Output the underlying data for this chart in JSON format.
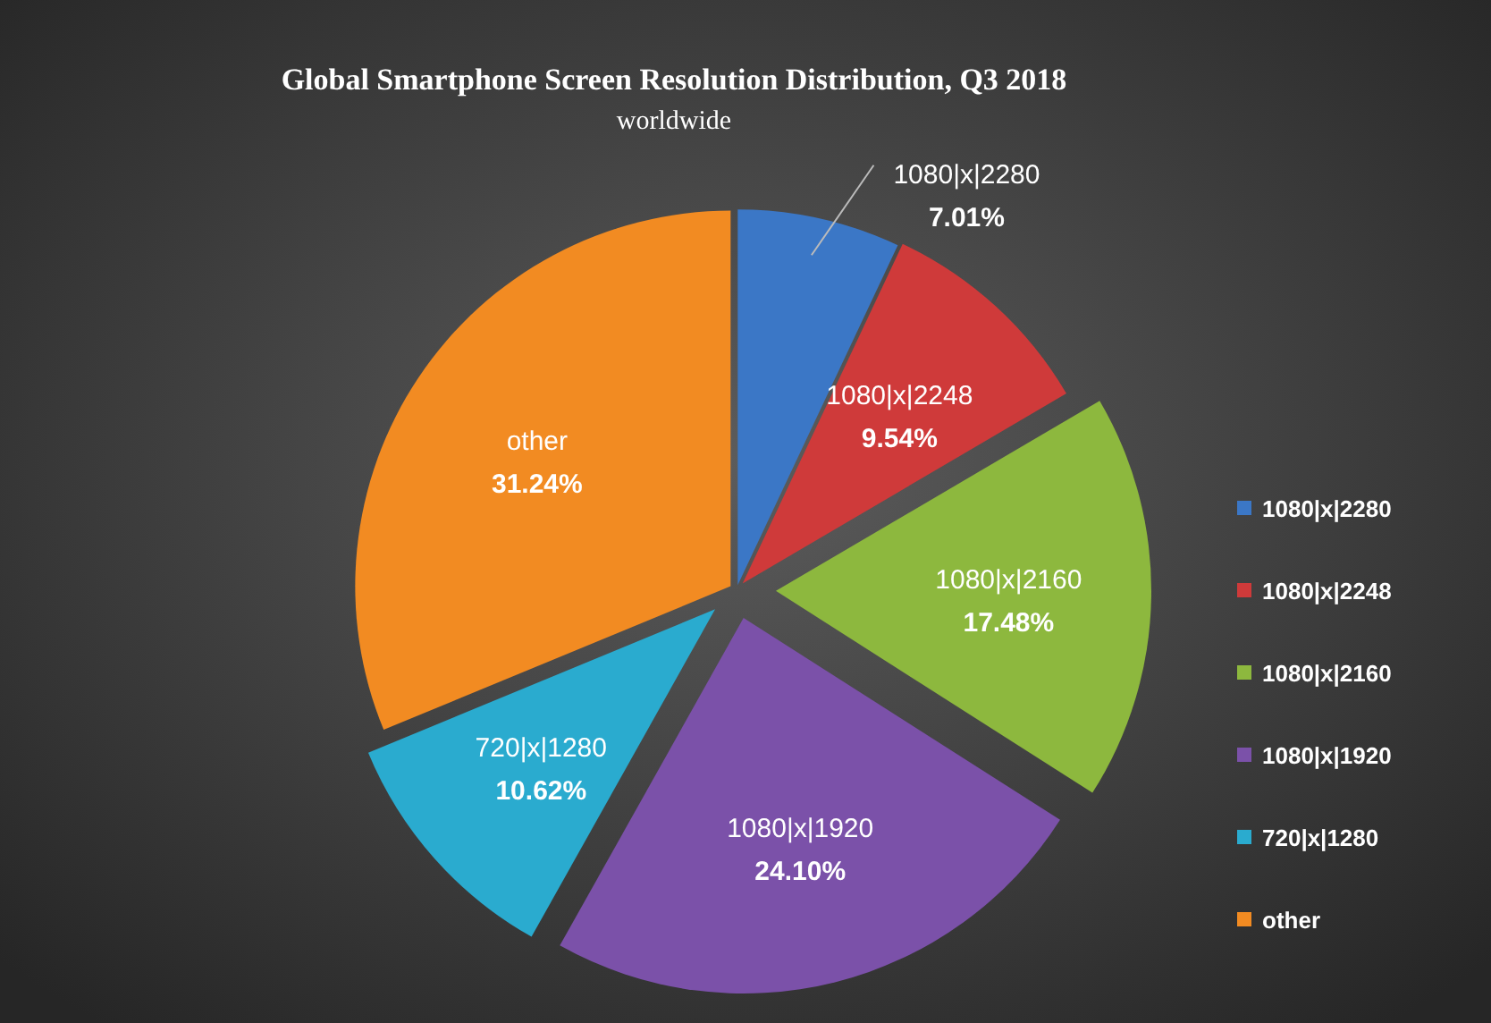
{
  "chart_data": {
    "type": "pie",
    "title": "Global Smartphone Screen Resolution Distribution, Q3 2018",
    "subtitle": "worldwide",
    "categories": [
      "1080|x|2280",
      "1080|x|2248",
      "1080|x|2160",
      "1080|x|1920",
      "720|x|1280",
      "other"
    ],
    "values": [
      7.01,
      9.54,
      17.48,
      24.1,
      10.62,
      31.24
    ],
    "colors": [
      "#3b77c6",
      "#cf3a3a",
      "#8db83e",
      "#7b51a9",
      "#2aabcf",
      "#f28b22"
    ],
    "value_labels": [
      "7.01%",
      "9.54%",
      "17.48%",
      "24.10%",
      "10.62%",
      "31.24%"
    ],
    "legend": "right"
  }
}
